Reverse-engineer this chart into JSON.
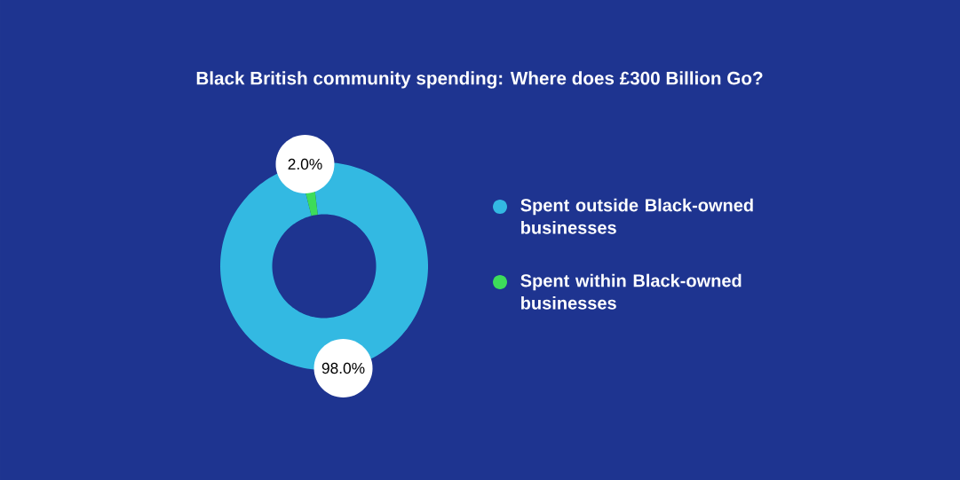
{
  "chart_data": {
    "type": "donut",
    "title": "Black British community spending: Where does £300 Billion Go?",
    "categories": [
      "Spent outside Black-owned businesses",
      "Spent within Black-owned businesses"
    ],
    "values": [
      98.0,
      2.0
    ],
    "colors": [
      "#33b9e2",
      "#3ddc5a"
    ],
    "value_labels": [
      "98.0%",
      "2.0%"
    ],
    "legend": "right"
  }
}
